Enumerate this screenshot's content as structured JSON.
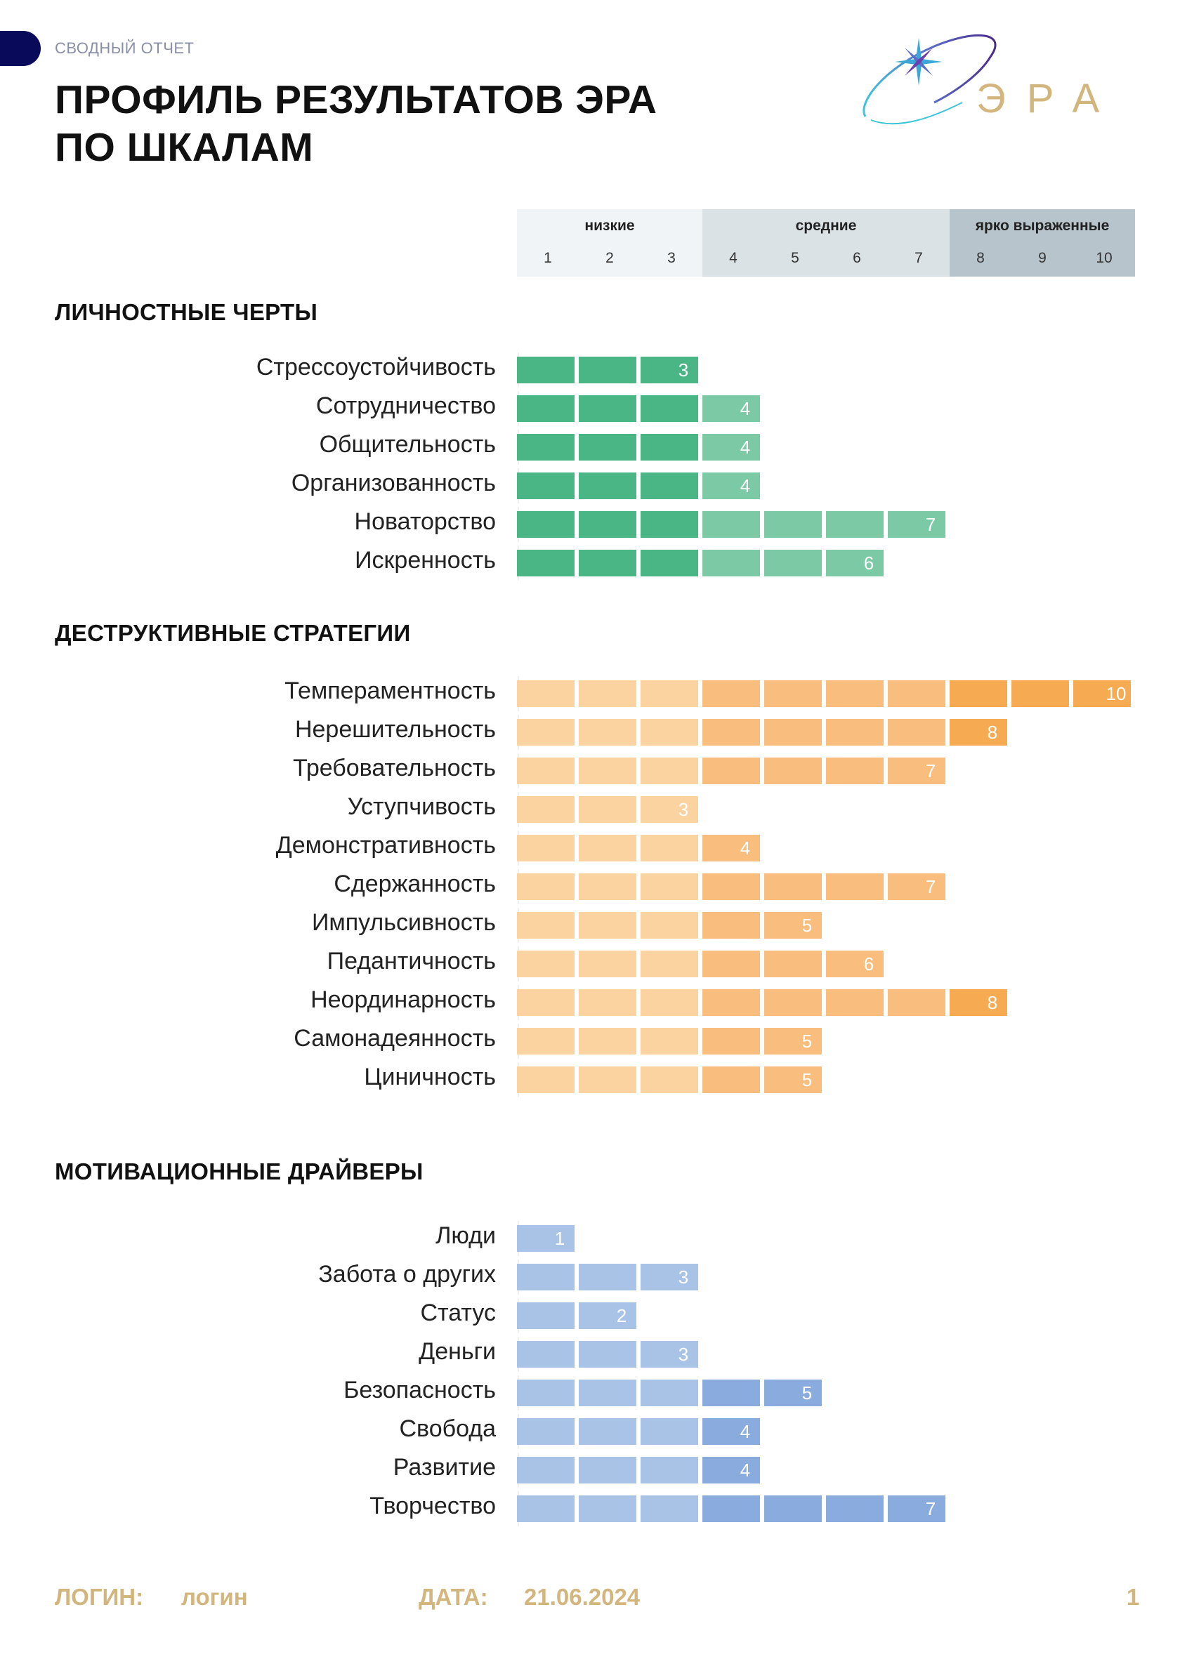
{
  "header": {
    "doc_label": "СВОДНЫЙ ОТЧЕТ",
    "title_line1": "ПРОФИЛЬ РЕЗУЛЬТАТОВ ЭРА",
    "title_line2": "ПО ШКАЛАМ",
    "logo_text": "ЭРА"
  },
  "scale": {
    "bands": [
      {
        "label": "низкие",
        "from": 1,
        "to": 3,
        "color": "#f1f4f7"
      },
      {
        "label": "средние",
        "from": 4,
        "to": 7,
        "color": "#dbe2e6"
      },
      {
        "label": "ярко выраженные",
        "from": 8,
        "to": 10,
        "color": "#b8c4cc"
      }
    ],
    "ticks": [
      "1",
      "2",
      "3",
      "4",
      "5",
      "6",
      "7",
      "8",
      "9",
      "10"
    ]
  },
  "colors": {
    "personality": {
      "low": "#4ab585",
      "mid": "#7ccaa5",
      "high": "#4ab585"
    },
    "destructive": {
      "low": "#fbd3a0",
      "mid": "#f9be7d",
      "high": "#f6ab52"
    },
    "motivation": {
      "low": "#a9c3e6",
      "mid": "#8aabdd",
      "high": "#8aabdd"
    }
  },
  "chart_data": [
    {
      "type": "bar",
      "title": "ЛИЧНОСТНЫЕ ЧЕРТЫ",
      "xlim": [
        0,
        10
      ],
      "categories": [
        "Стрессоустойчивость",
        "Сотрудничество",
        "Общительность",
        "Организованность",
        "Новаторство",
        "Искренность"
      ],
      "values": [
        3,
        4,
        4,
        4,
        7,
        6
      ]
    },
    {
      "type": "bar",
      "title": "ДЕСТРУКТИВНЫЕ СТРАТЕГИИ",
      "xlim": [
        0,
        10
      ],
      "categories": [
        "Темпераментность",
        "Нерешительность",
        "Требовательность",
        "Уступчивость",
        "Демонстративность",
        "Сдержанность",
        "Импульсивность",
        "Педантичность",
        "Неординарность",
        "Самонадеянность",
        "Циничность"
      ],
      "values": [
        10,
        8,
        7,
        3,
        4,
        7,
        5,
        6,
        8,
        5,
        5
      ]
    },
    {
      "type": "bar",
      "title": "МОТИВАЦИОННЫЕ ДРАЙВЕРЫ",
      "xlim": [
        0,
        10
      ],
      "categories": [
        "Люди",
        "Забота о других",
        "Статус",
        "Деньги",
        "Безопасность",
        "Свобода",
        "Развитие",
        "Творчество"
      ],
      "values": [
        1,
        3,
        2,
        3,
        5,
        4,
        4,
        7
      ]
    }
  ],
  "footer": {
    "login_label": "ЛОГИН:",
    "login_value": "логин",
    "date_label": "ДАТА:",
    "date_value": "21.06.2024",
    "page_number": "1"
  }
}
